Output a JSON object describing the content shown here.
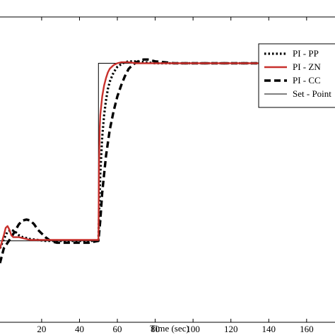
{
  "chart_data": {
    "type": "line",
    "xlabel": "Time (sec)",
    "ylabel": "",
    "title": "",
    "xlim": [
      -2,
      175
    ],
    "ylim": [
      -0.4,
      1.25
    ],
    "x_ticks": [
      20,
      40,
      60,
      80,
      100,
      120,
      140,
      160
    ],
    "grid": false,
    "legend_position": "top-right",
    "series": [
      {
        "name": "PI - PP",
        "color": "#000000",
        "style": "dotted",
        "x": [
          -2,
          0,
          2,
          4,
          6,
          8,
          10,
          14,
          18,
          22,
          26,
          30,
          40,
          50,
          50.5,
          51,
          52,
          53,
          54,
          55,
          56,
          58,
          60,
          62,
          64,
          66,
          68,
          70,
          75,
          80,
          90,
          100,
          175
        ],
        "y": [
          0.0,
          0.05,
          0.09,
          0.1,
          0.09,
          0.07,
          0.06,
          0.05,
          0.045,
          0.04,
          0.04,
          0.04,
          0.04,
          0.04,
          0.25,
          0.4,
          0.6,
          0.72,
          0.8,
          0.86,
          0.9,
          0.95,
          0.98,
          0.995,
          1.005,
          1.01,
          1.01,
          1.01,
          1.005,
          1.0,
          1.0,
          1.0,
          1.0
        ]
      },
      {
        "name": "PI - ZN",
        "color": "#c8302c",
        "style": "solid",
        "x": [
          -2,
          0,
          1,
          2,
          3,
          4,
          5,
          6,
          8,
          10,
          12,
          14,
          18,
          22,
          30,
          40,
          50,
          50.3,
          50.7,
          51,
          52,
          53,
          54,
          55,
          56,
          58,
          60,
          62,
          64,
          66,
          70,
          75,
          80,
          100,
          175
        ],
        "y": [
          0.0,
          0.07,
          0.11,
          0.12,
          0.1,
          0.07,
          0.06,
          0.06,
          0.06,
          0.055,
          0.05,
          0.045,
          0.045,
          0.045,
          0.045,
          0.045,
          0.045,
          0.45,
          0.65,
          0.72,
          0.82,
          0.88,
          0.92,
          0.95,
          0.97,
          0.99,
          1.0,
          1.005,
          1.005,
          1.005,
          1.0,
          1.0,
          1.0,
          1.0,
          1.0
        ]
      },
      {
        "name": "PI - CC",
        "color": "#000000",
        "style": "dashed",
        "x": [
          -2,
          0,
          4,
          8,
          10,
          12,
          14,
          16,
          18,
          20,
          22,
          24,
          26,
          28,
          30,
          35,
          40,
          45,
          50,
          51,
          52,
          54,
          56,
          58,
          60,
          62,
          64,
          66,
          68,
          70,
          72,
          74,
          76,
          78,
          80,
          85,
          90,
          100,
          175
        ],
        "y": [
          -0.08,
          0.0,
          0.06,
          0.13,
          0.15,
          0.155,
          0.15,
          0.13,
          0.1,
          0.08,
          0.06,
          0.045,
          0.035,
          0.03,
          0.03,
          0.03,
          0.03,
          0.03,
          0.04,
          0.15,
          0.3,
          0.5,
          0.64,
          0.74,
          0.82,
          0.88,
          0.93,
          0.97,
          0.99,
          1.005,
          1.015,
          1.02,
          1.02,
          1.015,
          1.01,
          1.005,
          1.0,
          1.0,
          1.0
        ]
      },
      {
        "name": "Set - Point",
        "color": "#000000",
        "style": "thin",
        "x": [
          -2,
          50,
          50,
          175
        ],
        "y": [
          0.04,
          0.04,
          1.0,
          1.0
        ]
      }
    ]
  }
}
